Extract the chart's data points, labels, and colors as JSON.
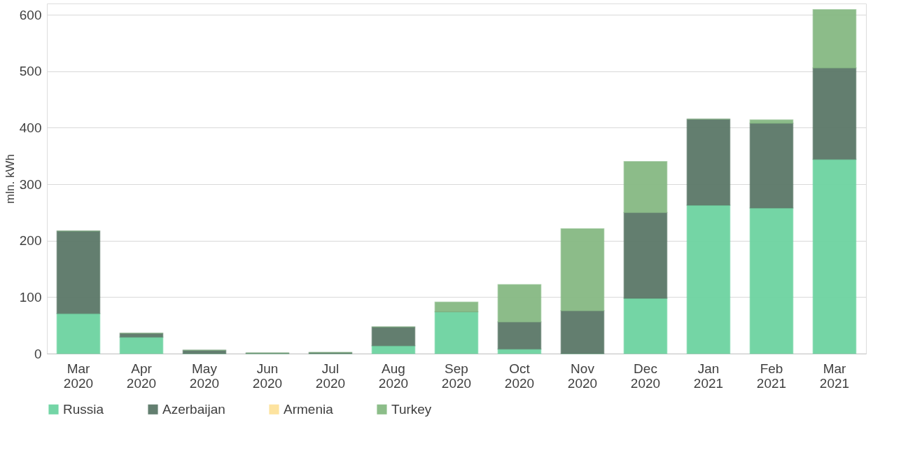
{
  "chart_data": {
    "type": "bar",
    "stacked": true,
    "ylabel": "mln. kWh",
    "categories": [
      "Mar 2020",
      "Apr 2020",
      "May 2020",
      "Jun 2020",
      "Jul 2020",
      "Aug 2020",
      "Sep 2020",
      "Oct 2020",
      "Nov 2020",
      "Dec 2020",
      "Jan 2021",
      "Feb 2021",
      "Mar 2021"
    ],
    "series": [
      {
        "name": "Russia",
        "color": "#6dd3a1",
        "values": [
          71,
          29,
          0,
          0,
          0,
          14,
          74,
          8,
          0,
          98,
          263,
          258,
          344
        ]
      },
      {
        "name": "Azerbaijan",
        "color": "#5b7868",
        "values": [
          146,
          7,
          6,
          1,
          2,
          33,
          0,
          48,
          76,
          152,
          152,
          150,
          162
        ]
      },
      {
        "name": "Armenia",
        "color": "#fde29a",
        "values": [
          null,
          null,
          null,
          null,
          null,
          null,
          null,
          null,
          null,
          null,
          null,
          null,
          null
        ]
      },
      {
        "name": "Turkey",
        "color": "#86b983",
        "values": [
          0,
          0,
          0,
          0,
          0,
          0,
          17,
          66,
          145,
          90,
          0,
          6,
          103
        ]
      }
    ],
    "ylim": [
      0,
      620
    ],
    "yticks": [
      0,
      100,
      200,
      300,
      400,
      500,
      600
    ],
    "grid": "y",
    "legend": "bottom"
  }
}
